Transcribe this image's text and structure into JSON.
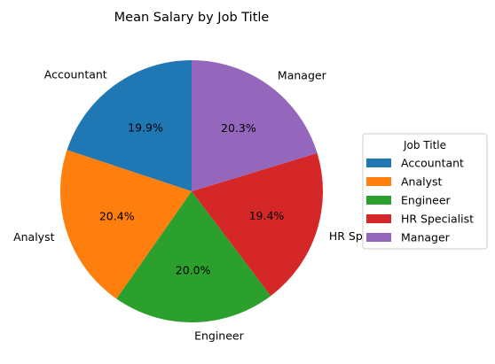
{
  "chart_data": {
    "type": "pie",
    "title": "Mean Salary by Job Title",
    "legend_title": "Job Title",
    "legend_position": "right",
    "start_angle_deg": 90,
    "direction": "counterclockwise",
    "slices": [
      {
        "label": "Accountant",
        "percent": 19.9,
        "pct_text": "19.9%",
        "color": "#1f77b4"
      },
      {
        "label": "Analyst",
        "percent": 20.4,
        "pct_text": "20.4%",
        "color": "#ff7f0e"
      },
      {
        "label": "Engineer",
        "percent": 20.0,
        "pct_text": "20.0%",
        "color": "#2ca02c"
      },
      {
        "label": "HR Specialist",
        "percent": 19.4,
        "pct_text": "19.4%",
        "color": "#d62728"
      },
      {
        "label": "Manager",
        "percent": 20.3,
        "pct_text": "20.3%",
        "color": "#9467bd"
      }
    ]
  }
}
